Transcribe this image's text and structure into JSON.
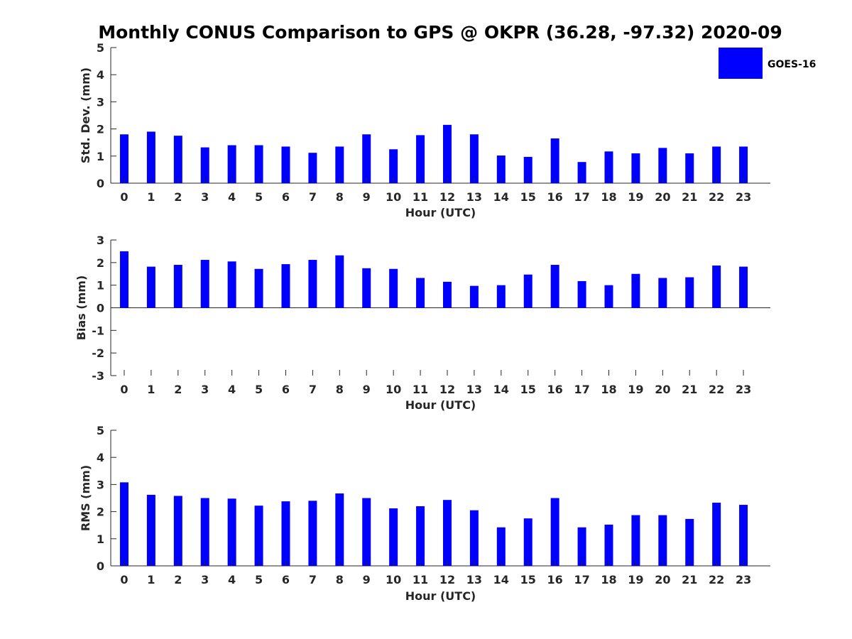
{
  "figure": {
    "title": "Monthly CONUS Comparison to GPS @ OKPR (36.28, -97.32) 2020-09",
    "legend": {
      "label": "GOES-16",
      "color": "#0000ff"
    }
  },
  "chart_data": [
    {
      "type": "bar",
      "id": "stddev",
      "series": [
        {
          "name": "GOES-16",
          "color": "#0000ff",
          "values": [
            1.8,
            1.9,
            1.75,
            1.32,
            1.4,
            1.4,
            1.35,
            1.12,
            1.35,
            1.8,
            1.25,
            1.77,
            2.15,
            1.8,
            1.02,
            0.97,
            1.65,
            0.78,
            1.17,
            1.1,
            1.3,
            1.1,
            1.35,
            1.35
          ]
        }
      ],
      "categories": [
        "0",
        "1",
        "2",
        "3",
        "4",
        "5",
        "6",
        "7",
        "8",
        "9",
        "10",
        "11",
        "12",
        "13",
        "14",
        "15",
        "16",
        "17",
        "18",
        "19",
        "20",
        "21",
        "22",
        "23"
      ],
      "xlabel": "Hour (UTC)",
      "ylabel": "Std. Dev. (mm)",
      "ylim": [
        0,
        5
      ],
      "yticks": [
        "0",
        "1",
        "2",
        "3",
        "4",
        "5"
      ],
      "ytick_values": [
        0,
        1,
        2,
        3,
        4,
        5
      ]
    },
    {
      "type": "bar",
      "id": "bias",
      "series": [
        {
          "name": "GOES-16",
          "color": "#0000ff",
          "values": [
            2.5,
            1.82,
            1.9,
            2.12,
            2.05,
            1.72,
            1.93,
            2.12,
            2.32,
            1.75,
            1.72,
            1.32,
            1.15,
            0.97,
            1.0,
            1.47,
            1.9,
            1.18,
            1.0,
            1.5,
            1.32,
            1.35,
            1.87,
            1.82
          ]
        }
      ],
      "categories": [
        "0",
        "1",
        "2",
        "3",
        "4",
        "5",
        "6",
        "7",
        "8",
        "9",
        "10",
        "11",
        "12",
        "13",
        "14",
        "15",
        "16",
        "17",
        "18",
        "19",
        "20",
        "21",
        "22",
        "23"
      ],
      "xlabel": "Hour (UTC)",
      "ylabel": "Bias (mm)",
      "ylim": [
        -3,
        3
      ],
      "yticks": [
        "-3",
        "-2",
        "-1",
        "0",
        "1",
        "2",
        "3"
      ],
      "ytick_values": [
        -3,
        -2,
        -1,
        0,
        1,
        2,
        3
      ]
    },
    {
      "type": "bar",
      "id": "rms",
      "series": [
        {
          "name": "GOES-16",
          "color": "#0000ff",
          "values": [
            3.08,
            2.62,
            2.58,
            2.5,
            2.48,
            2.22,
            2.38,
            2.4,
            2.67,
            2.5,
            2.12,
            2.2,
            2.43,
            2.05,
            1.42,
            1.75,
            2.5,
            1.42,
            1.52,
            1.87,
            1.87,
            1.73,
            2.33,
            2.25
          ]
        }
      ],
      "categories": [
        "0",
        "1",
        "2",
        "3",
        "4",
        "5",
        "6",
        "7",
        "8",
        "9",
        "10",
        "11",
        "12",
        "13",
        "14",
        "15",
        "16",
        "17",
        "18",
        "19",
        "20",
        "21",
        "22",
        "23"
      ],
      "xlabel": "Hour (UTC)",
      "ylabel": "RMS (mm)",
      "ylim": [
        0,
        5
      ],
      "yticks": [
        "0",
        "1",
        "2",
        "3",
        "4",
        "5"
      ],
      "ytick_values": [
        0,
        1,
        2,
        3,
        4,
        5
      ]
    }
  ]
}
